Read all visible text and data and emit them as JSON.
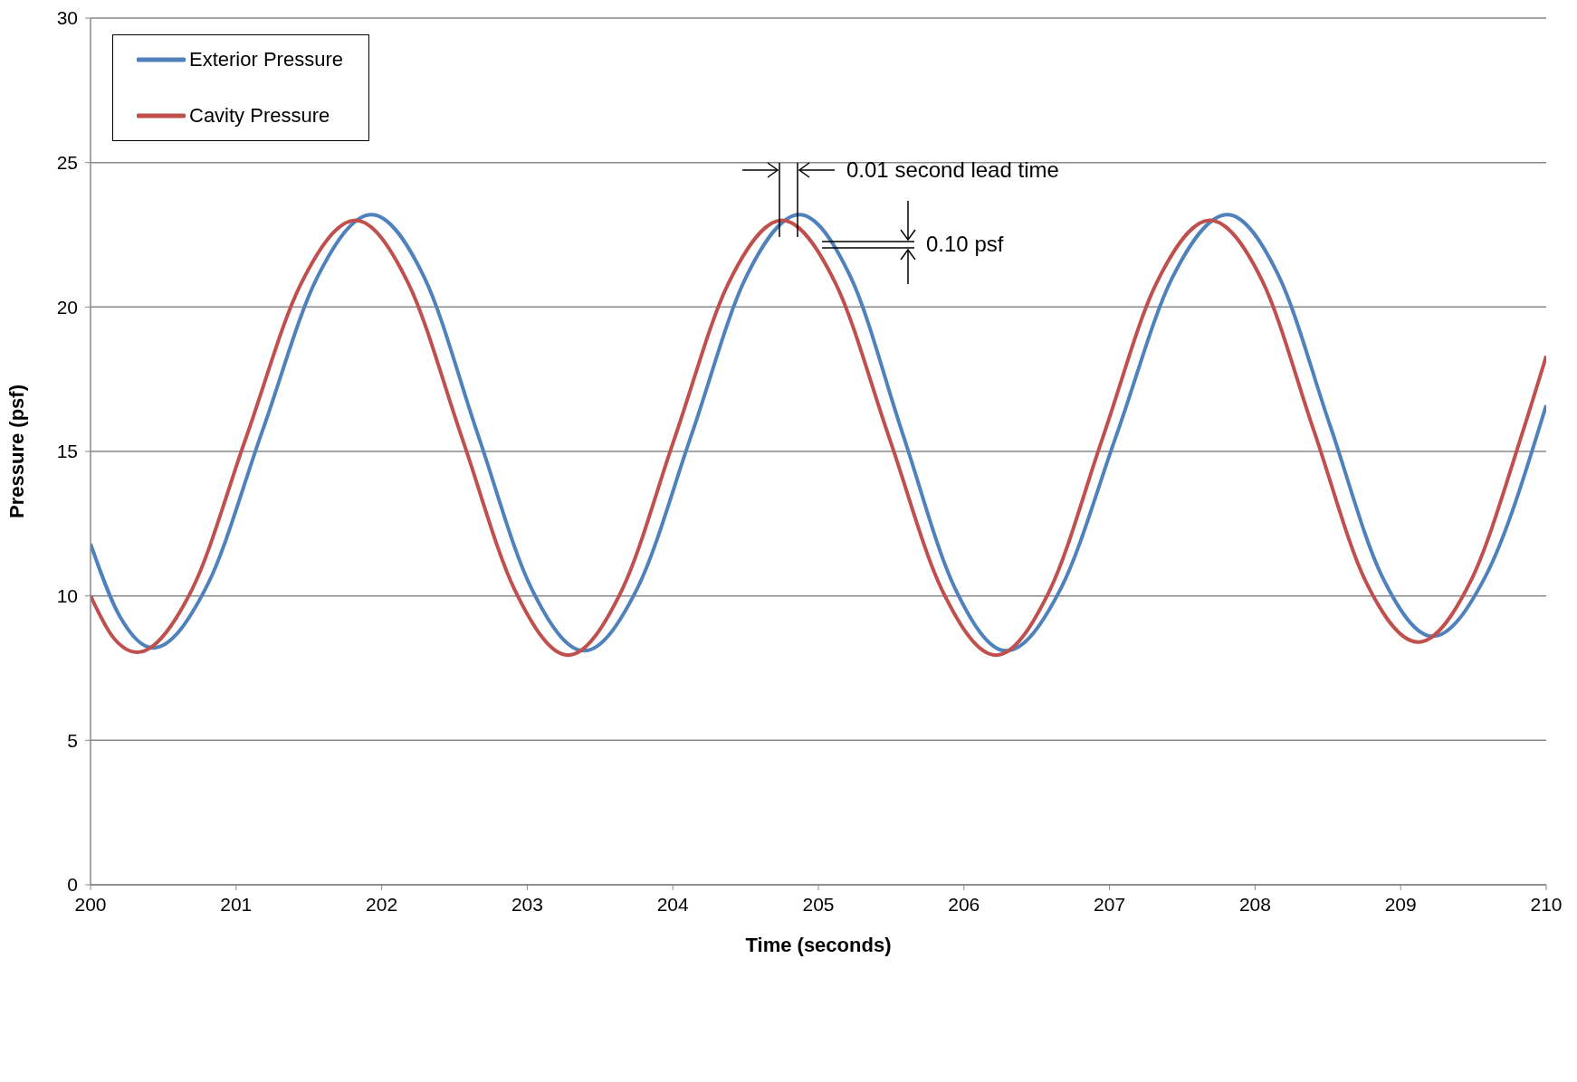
{
  "chart_data": {
    "type": "line",
    "xlabel": "Time (seconds)",
    "ylabel": "Pressure (psf)",
    "xlim": [
      200,
      210
    ],
    "xticks": [
      200,
      201,
      202,
      203,
      204,
      205,
      206,
      207,
      208,
      209,
      210
    ],
    "ylim": [
      0,
      30
    ],
    "yticks": [
      0,
      5,
      10,
      15,
      20,
      25,
      30
    ],
    "grid": "y",
    "legend": "top left",
    "marker": "none",
    "line_style": "solid",
    "series": [
      {
        "name": "Exterior Pressure",
        "color": "#4f81bd",
        "x": [
          200,
          200.2,
          200.43,
          200.805,
          201.18,
          201.555,
          201.93,
          202.295,
          202.66,
          203.025,
          203.39,
          203.76,
          204.13,
          204.5,
          204.87,
          205.225,
          205.58,
          205.935,
          206.29,
          206.67,
          207.05,
          207.43,
          207.81,
          208.16,
          208.515,
          208.87,
          209.22,
          209.585,
          210
        ],
        "values": [
          11.8,
          9.3,
          8.2,
          10.4,
          15.7,
          21.0,
          23.2,
          21.0,
          15.6,
          10.3,
          8.1,
          10.3,
          15.6,
          21.0,
          23.2,
          21.0,
          15.6,
          10.3,
          8.1,
          10.3,
          15.6,
          21.0,
          23.2,
          21.1,
          15.9,
          10.7,
          8.6,
          10.7,
          16.6
        ]
      },
      {
        "name": "Cavity Pressure",
        "color": "#c0504d",
        "x": [
          200,
          200.15,
          200.32,
          200.695,
          201.07,
          201.445,
          201.82,
          202.185,
          202.55,
          202.915,
          203.28,
          203.65,
          204.015,
          204.38,
          204.75,
          205.12,
          205.485,
          205.85,
          206.22,
          206.59,
          206.955,
          207.32,
          207.69,
          208.05,
          208.405,
          208.76,
          209.12,
          209.48,
          209.84,
          210
        ],
        "values": [
          10.0,
          8.6,
          8.05,
          10.2,
          15.5,
          20.8,
          23.0,
          20.8,
          15.5,
          10.2,
          7.95,
          10.2,
          15.5,
          20.8,
          23.0,
          20.8,
          15.5,
          10.2,
          7.95,
          10.2,
          15.5,
          20.8,
          23.0,
          20.9,
          15.7,
          10.5,
          8.4,
          10.5,
          15.7,
          18.3
        ]
      }
    ],
    "annotations": [
      "0.01 second lead time",
      "0.10 psf"
    ]
  }
}
